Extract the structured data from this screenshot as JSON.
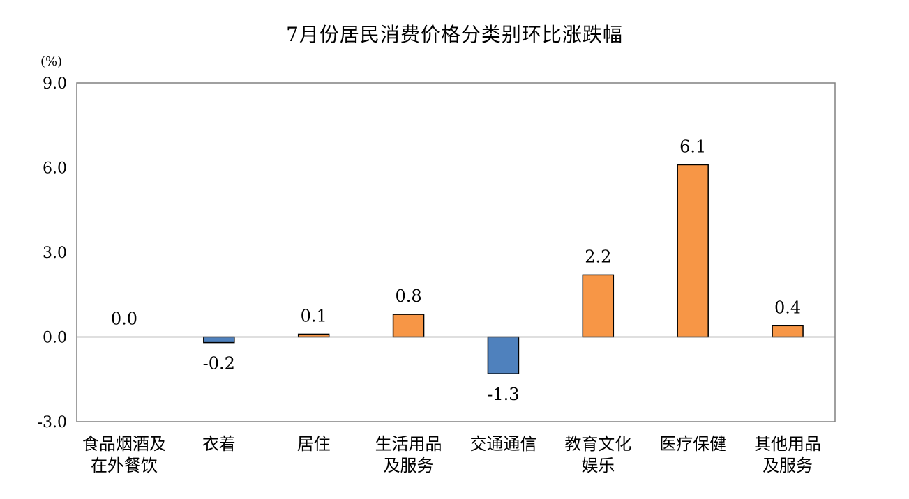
{
  "chart_data": {
    "type": "bar",
    "title": "7月份居民消费价格分类别环比涨跌幅",
    "unit": "(%)",
    "xlabel": "",
    "ylabel": "",
    "ylim": [
      -3.0,
      9.0
    ],
    "yticks": [
      "9.0",
      "6.0",
      "3.0",
      "0.0",
      "-3.0"
    ],
    "ytick_values": [
      9.0,
      6.0,
      3.0,
      0.0,
      -3.0
    ],
    "grid": false,
    "legend": "none",
    "categories": [
      [
        "食品烟酒及",
        "在外餐饮"
      ],
      [
        "衣着"
      ],
      [
        "居住"
      ],
      [
        "生活用品",
        "及服务"
      ],
      [
        "交通通信"
      ],
      [
        "教育文化",
        "娱乐"
      ],
      [
        "医疗保健"
      ],
      [
        "其他用品",
        "及服务"
      ]
    ],
    "values": [
      0.0,
      -0.2,
      0.1,
      0.8,
      -1.3,
      2.2,
      6.1,
      0.4
    ],
    "value_labels": [
      "0.0",
      "-0.2",
      "0.1",
      "0.8",
      "-1.3",
      "2.2",
      "6.1",
      "0.4"
    ],
    "colors": {
      "positive": "#F79646",
      "negative": "#4F81BD",
      "bar_stroke": "#000000",
      "axis": "#808080",
      "frame": "#808080"
    }
  }
}
